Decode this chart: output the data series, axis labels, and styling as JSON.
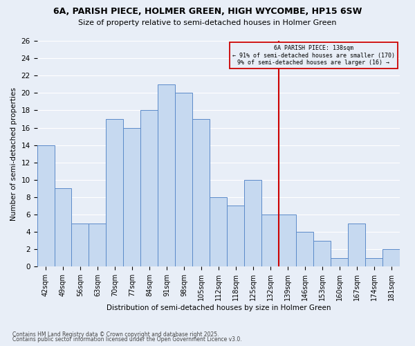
{
  "title_line1": "6A, PARISH PIECE, HOLMER GREEN, HIGH WYCOMBE, HP15 6SW",
  "title_line2": "Size of property relative to semi-detached houses in Holmer Green",
  "xlabel": "Distribution of semi-detached houses by size in Holmer Green",
  "ylabel": "Number of semi-detached properties",
  "footnote1": "Contains HM Land Registry data © Crown copyright and database right 2025.",
  "footnote2": "Contains public sector information licensed under the Open Government Licence v3.0.",
  "categories": [
    "42sqm",
    "49sqm",
    "56sqm",
    "63sqm",
    "70sqm",
    "77sqm",
    "84sqm",
    "91sqm",
    "98sqm",
    "105sqm",
    "112sqm",
    "118sqm",
    "125sqm",
    "132sqm",
    "139sqm",
    "146sqm",
    "153sqm",
    "160sqm",
    "167sqm",
    "174sqm",
    "181sqm"
  ],
  "values": [
    14,
    9,
    5,
    5,
    17,
    16,
    18,
    21,
    20,
    17,
    8,
    7,
    10,
    6,
    6,
    4,
    3,
    1,
    5,
    1,
    2
  ],
  "bar_color": "#c6d9f0",
  "bar_edge_color": "#5b8ac9",
  "subject_line_color": "#cc0000",
  "annotation_box_edge_color": "#cc0000",
  "subject_label": "6A PARISH PIECE: 138sqm",
  "pct_smaller": 91,
  "n_smaller": 170,
  "pct_larger": 9,
  "n_larger": 16,
  "ylim": [
    0,
    26
  ],
  "yticks": [
    0,
    2,
    4,
    6,
    8,
    10,
    12,
    14,
    16,
    18,
    20,
    22,
    24,
    26
  ],
  "background_color": "#e8eef7",
  "grid_color": "#ffffff"
}
